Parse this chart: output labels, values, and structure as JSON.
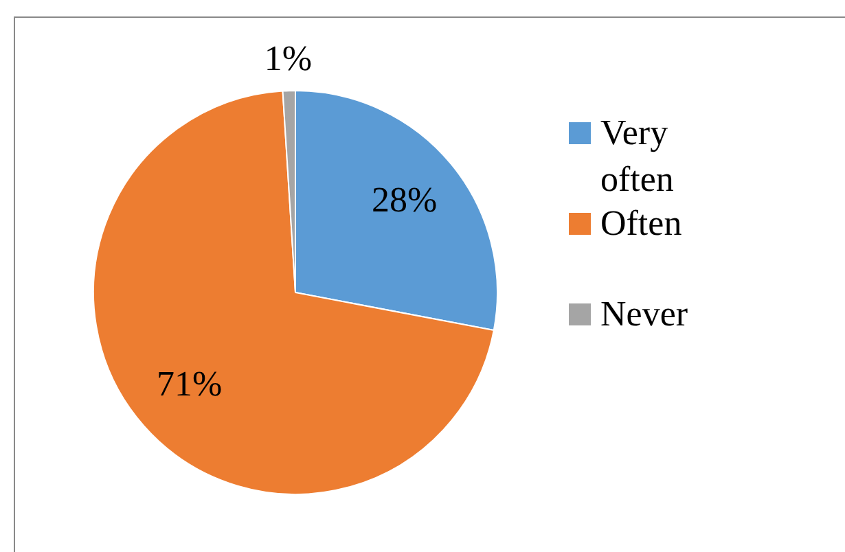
{
  "chart_data": {
    "type": "pie",
    "categories": [
      "Very often",
      "Often",
      "Never"
    ],
    "values": [
      28,
      71,
      1
    ],
    "colors": [
      "#5b9bd5",
      "#ed7d31",
      "#a5a5a5"
    ],
    "value_labels": [
      "28%",
      "71%",
      "1%"
    ],
    "legend": "right"
  }
}
